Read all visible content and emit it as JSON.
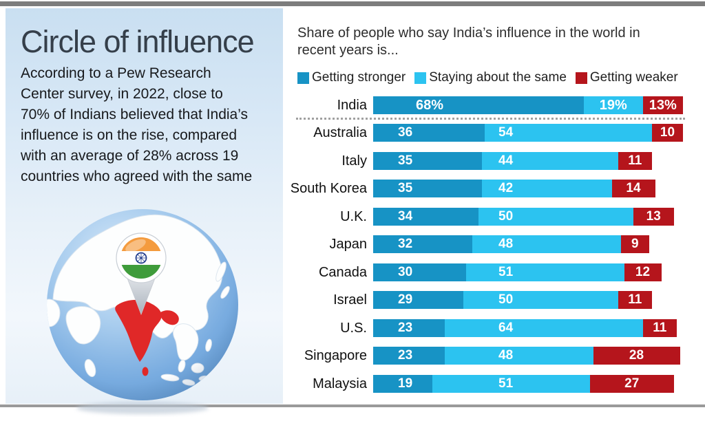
{
  "left_panel": {
    "title": "Circle of influence",
    "description": "According to a Pew Research\nCenter survey, in 2022, close to\n70% of Indians believed that India’s\ninfluence is on the rise, compared\nwith an average of 28% across 19\ncountries who agreed with the same",
    "globe_icon": "globe-asia-with-india-highlighted-and-india-flag-pin"
  },
  "chart": {
    "subtitle": "Share of people who say India’s influence in the world in\nrecent years is..."
  },
  "chart_data": {
    "type": "bar",
    "stacked": true,
    "orientation": "horizontal",
    "title": "Share of people who say India’s influence in the world in recent years is...",
    "legend_position": "top",
    "xlim": [
      0,
      100
    ],
    "grid": false,
    "highlight_index": 0,
    "categories": [
      "India",
      "Australia",
      "Italy",
      "South Korea",
      "U.K.",
      "Japan",
      "Canada",
      "Israel",
      "U.S.",
      "Singapore",
      "Malaysia"
    ],
    "series": [
      {
        "name": "Getting stronger",
        "color": "#1793c5",
        "values": [
          68,
          36,
          35,
          35,
          34,
          32,
          30,
          29,
          23,
          23,
          19
        ]
      },
      {
        "name": "Staying about the same",
        "color": "#2cc3f0",
        "values": [
          19,
          54,
          44,
          42,
          50,
          48,
          51,
          50,
          64,
          48,
          51
        ]
      },
      {
        "name": "Getting weaker",
        "color": "#b5151c",
        "values": [
          13,
          10,
          11,
          14,
          13,
          9,
          12,
          11,
          11,
          28,
          27
        ]
      }
    ],
    "display": [
      [
        "68%",
        "19%",
        "13%"
      ],
      [
        "36",
        "54",
        "10"
      ],
      [
        "35",
        "44",
        "11"
      ],
      [
        "35",
        "42",
        "14"
      ],
      [
        "34",
        "50",
        "13"
      ],
      [
        "32",
        "48",
        "9"
      ],
      [
        "30",
        "51",
        "12"
      ],
      [
        "29",
        "50",
        "11"
      ],
      [
        "23",
        "64",
        "11"
      ],
      [
        "23",
        "48",
        "28"
      ],
      [
        "19",
        "51",
        "27"
      ]
    ]
  },
  "colors": {
    "stronger": "#1793c5",
    "same": "#2cc3f0",
    "weaker": "#b5151c",
    "panel_top": "#c9dff1",
    "panel_bottom": "#e7f0f8",
    "india_map_red": "#e02828",
    "flag_saffron": "#f49b3e",
    "flag_green": "#3f9c3b",
    "flag_navy": "#27418f",
    "ocean_blue": "#5b9bd5"
  }
}
